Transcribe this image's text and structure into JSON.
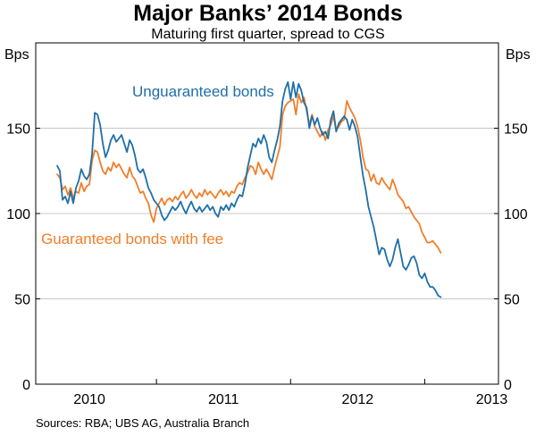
{
  "title": "Major Banks’ 2014 Bonds",
  "subtitle": "Maturing first quarter, spread to CGS",
  "source": "Sources: RBA; UBS AG, Australia Branch",
  "chart_data": {
    "type": "line",
    "ylabel_left": "Bps",
    "ylabel_right": "Bps",
    "ylim": [
      0,
      200
    ],
    "yticks": [
      0,
      50,
      100,
      150
    ],
    "xlim": [
      2009.6,
      2013.05
    ],
    "xtick_labels": [
      {
        "label": "2010",
        "x": 2010.0
      },
      {
        "label": "2011",
        "x": 2011.0
      },
      {
        "label": "2012",
        "x": 2012.0
      },
      {
        "label": "2013",
        "x": 2013.0
      }
    ],
    "year_boundaries": [
      2010.5,
      2011.5,
      2012.5
    ],
    "grid": true,
    "colors": {
      "unguaranteed": "#1f6fa8",
      "guaranteed": "#f07f2a",
      "grid": "#c8c8c8"
    },
    "series": [
      {
        "name": "Unguaranteed bonds",
        "key": "unguaranteed",
        "points": [
          [
            2009.76,
            128
          ],
          [
            2009.78,
            125
          ],
          [
            2009.8,
            108
          ],
          [
            2009.82,
            110
          ],
          [
            2009.84,
            106
          ],
          [
            2009.86,
            113
          ],
          [
            2009.88,
            106
          ],
          [
            2009.9,
            115
          ],
          [
            2009.92,
            119
          ],
          [
            2009.94,
            126
          ],
          [
            2009.96,
            122
          ],
          [
            2009.98,
            120
          ],
          [
            2010.0,
            123
          ],
          [
            2010.02,
            135
          ],
          [
            2010.04,
            159
          ],
          [
            2010.06,
            158
          ],
          [
            2010.08,
            152
          ],
          [
            2010.1,
            141
          ],
          [
            2010.12,
            133
          ],
          [
            2010.14,
            137
          ],
          [
            2010.16,
            143
          ],
          [
            2010.18,
            146
          ],
          [
            2010.2,
            142
          ],
          [
            2010.22,
            144
          ],
          [
            2010.24,
            146
          ],
          [
            2010.26,
            141
          ],
          [
            2010.28,
            136
          ],
          [
            2010.3,
            143
          ],
          [
            2010.32,
            140
          ],
          [
            2010.34,
            134
          ],
          [
            2010.36,
            126
          ],
          [
            2010.38,
            124
          ],
          [
            2010.4,
            126
          ],
          [
            2010.42,
            121
          ],
          [
            2010.44,
            115
          ],
          [
            2010.46,
            112
          ],
          [
            2010.48,
            108
          ],
          [
            2010.5,
            106
          ],
          [
            2010.52,
            104
          ],
          [
            2010.54,
            99
          ],
          [
            2010.56,
            96
          ],
          [
            2010.58,
            98
          ],
          [
            2010.6,
            101
          ],
          [
            2010.62,
            104
          ],
          [
            2010.64,
            102
          ],
          [
            2010.66,
            104
          ],
          [
            2010.68,
            107
          ],
          [
            2010.7,
            103
          ],
          [
            2010.72,
            100
          ],
          [
            2010.74,
            104
          ],
          [
            2010.76,
            107
          ],
          [
            2010.78,
            103
          ],
          [
            2010.8,
            101
          ],
          [
            2010.82,
            104
          ],
          [
            2010.84,
            101
          ],
          [
            2010.86,
            103
          ],
          [
            2010.88,
            105
          ],
          [
            2010.9,
            102
          ],
          [
            2010.92,
            104
          ],
          [
            2010.94,
            100
          ],
          [
            2010.96,
            98
          ],
          [
            2010.98,
            104
          ],
          [
            2011.0,
            102
          ],
          [
            2011.02,
            105
          ],
          [
            2011.04,
            102
          ],
          [
            2011.06,
            106
          ],
          [
            2011.08,
            104
          ],
          [
            2011.1,
            108
          ],
          [
            2011.12,
            111
          ],
          [
            2011.14,
            110
          ],
          [
            2011.16,
            117
          ],
          [
            2011.18,
            127
          ],
          [
            2011.2,
            134
          ],
          [
            2011.22,
            141
          ],
          [
            2011.24,
            139
          ],
          [
            2011.26,
            144
          ],
          [
            2011.28,
            141
          ],
          [
            2011.3,
            146
          ],
          [
            2011.32,
            142
          ],
          [
            2011.34,
            133
          ],
          [
            2011.36,
            130
          ],
          [
            2011.38,
            137
          ],
          [
            2011.4,
            143
          ],
          [
            2011.42,
            151
          ],
          [
            2011.44,
            166
          ],
          [
            2011.46,
            173
          ],
          [
            2011.48,
            177
          ],
          [
            2011.5,
            167
          ],
          [
            2011.52,
            177
          ],
          [
            2011.54,
            168
          ],
          [
            2011.56,
            176
          ],
          [
            2011.58,
            172
          ],
          [
            2011.6,
            165
          ],
          [
            2011.62,
            162
          ],
          [
            2011.64,
            150
          ],
          [
            2011.66,
            157
          ],
          [
            2011.68,
            152
          ],
          [
            2011.7,
            156
          ],
          [
            2011.72,
            150
          ],
          [
            2011.74,
            146
          ],
          [
            2011.76,
            148
          ],
          [
            2011.78,
            144
          ],
          [
            2011.8,
            155
          ],
          [
            2011.82,
            160
          ],
          [
            2011.84,
            148
          ],
          [
            2011.86,
            153
          ],
          [
            2011.88,
            155
          ],
          [
            2011.9,
            157
          ],
          [
            2011.92,
            155
          ],
          [
            2011.94,
            149
          ],
          [
            2011.96,
            155
          ],
          [
            2011.98,
            151
          ],
          [
            2012.0,
            145
          ],
          [
            2012.02,
            133
          ],
          [
            2012.04,
            122
          ],
          [
            2012.06,
            114
          ],
          [
            2012.08,
            104
          ],
          [
            2012.1,
            98
          ],
          [
            2012.12,
            92
          ],
          [
            2012.14,
            84
          ],
          [
            2012.16,
            76
          ],
          [
            2012.18,
            80
          ],
          [
            2012.2,
            79
          ],
          [
            2012.22,
            73
          ],
          [
            2012.24,
            69
          ],
          [
            2012.26,
            73
          ],
          [
            2012.28,
            80
          ],
          [
            2012.3,
            85
          ],
          [
            2012.32,
            77
          ],
          [
            2012.34,
            69
          ],
          [
            2012.36,
            67
          ],
          [
            2012.38,
            70
          ],
          [
            2012.4,
            74
          ],
          [
            2012.42,
            75
          ],
          [
            2012.44,
            71
          ],
          [
            2012.46,
            64
          ],
          [
            2012.48,
            62
          ],
          [
            2012.5,
            65
          ],
          [
            2012.52,
            60
          ],
          [
            2012.54,
            57
          ],
          [
            2012.56,
            57
          ],
          [
            2012.58,
            55
          ],
          [
            2012.6,
            52
          ],
          [
            2012.62,
            51
          ]
        ]
      },
      {
        "name": "Guaranteed bonds with fee",
        "key": "guaranteed",
        "points": [
          [
            2009.76,
            123
          ],
          [
            2009.78,
            121
          ],
          [
            2009.8,
            114
          ],
          [
            2009.82,
            116
          ],
          [
            2009.84,
            111
          ],
          [
            2009.86,
            115
          ],
          [
            2009.88,
            109
          ],
          [
            2009.9,
            113
          ],
          [
            2009.92,
            112
          ],
          [
            2009.94,
            118
          ],
          [
            2009.96,
            113
          ],
          [
            2009.98,
            116
          ],
          [
            2010.0,
            117
          ],
          [
            2010.02,
            131
          ],
          [
            2010.04,
            137
          ],
          [
            2010.06,
            136
          ],
          [
            2010.08,
            130
          ],
          [
            2010.1,
            125
          ],
          [
            2010.12,
            123
          ],
          [
            2010.14,
            127
          ],
          [
            2010.16,
            125
          ],
          [
            2010.18,
            130
          ],
          [
            2010.2,
            127
          ],
          [
            2010.22,
            129
          ],
          [
            2010.24,
            126
          ],
          [
            2010.26,
            123
          ],
          [
            2010.28,
            121
          ],
          [
            2010.3,
            127
          ],
          [
            2010.32,
            122
          ],
          [
            2010.34,
            120
          ],
          [
            2010.36,
            116
          ],
          [
            2010.38,
            112
          ],
          [
            2010.4,
            113
          ],
          [
            2010.42,
            109
          ],
          [
            2010.44,
            106
          ],
          [
            2010.46,
            99
          ],
          [
            2010.48,
            95
          ],
          [
            2010.5,
            103
          ],
          [
            2010.52,
            106
          ],
          [
            2010.54,
            109
          ],
          [
            2010.56,
            105
          ],
          [
            2010.58,
            108
          ],
          [
            2010.6,
            109
          ],
          [
            2010.62,
            107
          ],
          [
            2010.64,
            110
          ],
          [
            2010.66,
            108
          ],
          [
            2010.68,
            111
          ],
          [
            2010.7,
            113
          ],
          [
            2010.72,
            109
          ],
          [
            2010.74,
            111
          ],
          [
            2010.76,
            114
          ],
          [
            2010.78,
            111
          ],
          [
            2010.8,
            109
          ],
          [
            2010.82,
            112
          ],
          [
            2010.84,
            110
          ],
          [
            2010.86,
            114
          ],
          [
            2010.88,
            111
          ],
          [
            2010.9,
            113
          ],
          [
            2010.92,
            111
          ],
          [
            2010.94,
            109
          ],
          [
            2010.96,
            112
          ],
          [
            2010.98,
            114
          ],
          [
            2011.0,
            111
          ],
          [
            2011.02,
            113
          ],
          [
            2011.04,
            110
          ],
          [
            2011.06,
            113
          ],
          [
            2011.08,
            112
          ],
          [
            2011.1,
            116
          ],
          [
            2011.12,
            118
          ],
          [
            2011.14,
            117
          ],
          [
            2011.16,
            121
          ],
          [
            2011.18,
            124
          ],
          [
            2011.2,
            128
          ],
          [
            2011.22,
            127
          ],
          [
            2011.24,
            123
          ],
          [
            2011.26,
            130
          ],
          [
            2011.28,
            126
          ],
          [
            2011.3,
            123
          ],
          [
            2011.32,
            126
          ],
          [
            2011.34,
            123
          ],
          [
            2011.36,
            120
          ],
          [
            2011.38,
            127
          ],
          [
            2011.4,
            133
          ],
          [
            2011.42,
            139
          ],
          [
            2011.44,
            158
          ],
          [
            2011.46,
            163
          ],
          [
            2011.48,
            165
          ],
          [
            2011.5,
            166
          ],
          [
            2011.52,
            167
          ],
          [
            2011.54,
            158
          ],
          [
            2011.56,
            170
          ],
          [
            2011.58,
            165
          ],
          [
            2011.6,
            168
          ],
          [
            2011.62,
            160
          ],
          [
            2011.64,
            152
          ],
          [
            2011.66,
            158
          ],
          [
            2011.68,
            151
          ],
          [
            2011.7,
            148
          ],
          [
            2011.72,
            145
          ],
          [
            2011.74,
            148
          ],
          [
            2011.76,
            143
          ],
          [
            2011.78,
            149
          ],
          [
            2011.8,
            152
          ],
          [
            2011.82,
            157
          ],
          [
            2011.84,
            149
          ],
          [
            2011.86,
            151
          ],
          [
            2011.88,
            154
          ],
          [
            2011.9,
            155
          ],
          [
            2011.92,
            166
          ],
          [
            2011.94,
            162
          ],
          [
            2011.96,
            159
          ],
          [
            2011.98,
            156
          ],
          [
            2012.0,
            151
          ],
          [
            2012.02,
            143
          ],
          [
            2012.04,
            133
          ],
          [
            2012.06,
            126
          ],
          [
            2012.08,
            125
          ],
          [
            2012.1,
            119
          ],
          [
            2012.12,
            123
          ],
          [
            2012.14,
            118
          ],
          [
            2012.16,
            117
          ],
          [
            2012.18,
            121
          ],
          [
            2012.2,
            118
          ],
          [
            2012.22,
            116
          ],
          [
            2012.24,
            114
          ],
          [
            2012.26,
            120
          ],
          [
            2012.28,
            116
          ],
          [
            2012.3,
            111
          ],
          [
            2012.32,
            109
          ],
          [
            2012.34,
            107
          ],
          [
            2012.36,
            103
          ],
          [
            2012.38,
            104
          ],
          [
            2012.4,
            101
          ],
          [
            2012.42,
            98
          ],
          [
            2012.44,
            96
          ],
          [
            2012.46,
            94
          ],
          [
            2012.48,
            89
          ],
          [
            2012.5,
            86
          ],
          [
            2012.52,
            83
          ],
          [
            2012.54,
            83
          ],
          [
            2012.56,
            84
          ],
          [
            2012.58,
            82
          ],
          [
            2012.6,
            80
          ],
          [
            2012.62,
            77
          ]
        ]
      }
    ]
  }
}
